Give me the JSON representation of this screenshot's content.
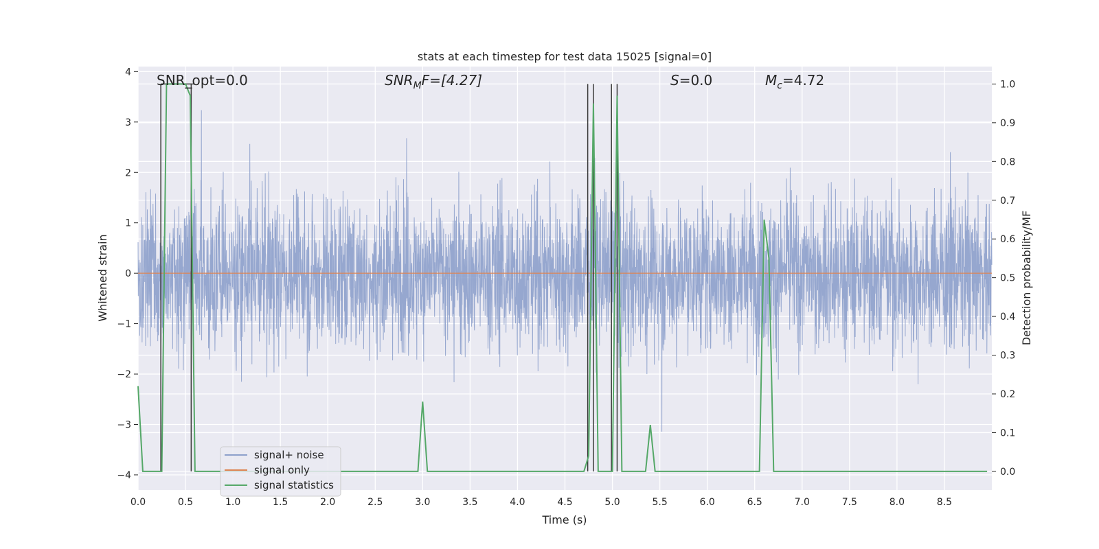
{
  "chart_data": {
    "type": "line",
    "title": "stats at each timestep for test data 15025 [signal=0]",
    "xlabel": "Time (s)",
    "ylabel": "Whitened strain",
    "y2label": "Detection probability/MF",
    "xlim": [
      0,
      9.0
    ],
    "ylim": [
      -4.3,
      4.1
    ],
    "y2lim": [
      -0.048,
      1.045
    ],
    "xticks": [
      0.0,
      0.5,
      1.0,
      1.5,
      2.0,
      2.5,
      3.0,
      3.5,
      4.0,
      4.5,
      5.0,
      5.5,
      6.0,
      6.5,
      7.0,
      7.5,
      8.0,
      8.5
    ],
    "xtick_labels": [
      "0.0",
      "0.5",
      "1.0",
      "1.5",
      "2.0",
      "2.5",
      "3.0",
      "3.5",
      "4.0",
      "4.5",
      "5.0",
      "5.5",
      "6.0",
      "6.5",
      "7.0",
      "7.5",
      "8.0",
      "8.5"
    ],
    "yticks": [
      -4,
      -3,
      -2,
      -1,
      0,
      1,
      2,
      3,
      4
    ],
    "ytick_labels": [
      "−4",
      "−3",
      "−2",
      "−1",
      "0",
      "1",
      "2",
      "3",
      "4"
    ],
    "y2ticks": [
      0.0,
      0.1,
      0.2,
      0.3,
      0.4,
      0.5,
      0.6,
      0.7,
      0.8,
      0.9,
      1.0
    ],
    "y2tick_labels": [
      "0.0",
      "0.1",
      "0.2",
      "0.3",
      "0.4",
      "0.5",
      "0.6",
      "0.7",
      "0.8",
      "0.9",
      "1.0"
    ],
    "grid": true,
    "legend_placement": "lower-left",
    "series": [
      {
        "name": "signal+ noise",
        "color": "#8da0cb",
        "axis": "left",
        "kind": "noise",
        "envelope_upper": 2.0,
        "envelope_lower": -2.0,
        "peak_max": 3.7,
        "trough_min": -4.0
      },
      {
        "name": "signal only",
        "color": "#dd8452",
        "axis": "left",
        "values_x": [
          0,
          9.0
        ],
        "values_y": [
          0,
          0
        ]
      },
      {
        "name": "signal statistics",
        "color": "#55a868",
        "axis": "right",
        "x": [
          0.0,
          0.05,
          0.1,
          0.15,
          0.2,
          0.25,
          0.3,
          0.35,
          0.4,
          0.45,
          0.5,
          0.55,
          0.6,
          0.65,
          0.7,
          0.8,
          0.9,
          1.0,
          1.5,
          2.0,
          2.5,
          2.9,
          2.95,
          3.0,
          3.05,
          3.1,
          3.5,
          4.0,
          4.5,
          4.65,
          4.7,
          4.75,
          4.8,
          4.85,
          4.9,
          4.95,
          5.0,
          5.05,
          5.1,
          5.15,
          5.2,
          5.25,
          5.3,
          5.35,
          5.4,
          5.45,
          5.5,
          5.6,
          5.7,
          5.8,
          5.9,
          5.95,
          6.0,
          6.1,
          6.2,
          6.3,
          6.4,
          6.5,
          6.55,
          6.6,
          6.65,
          6.7,
          6.75,
          6.8,
          7.0,
          7.5,
          8.0,
          8.5,
          8.6,
          8.7,
          8.8,
          8.95
        ],
        "values": [
          0.22,
          0.0,
          0.0,
          0.0,
          0.0,
          0.0,
          1.0,
          1.0,
          1.0,
          1.0,
          1.0,
          0.97,
          0.0,
          0.0,
          0.0,
          0.0,
          0.0,
          0.0,
          0.0,
          0.0,
          0.0,
          0.0,
          0.0,
          0.18,
          0.0,
          0.0,
          0.0,
          0.0,
          0.0,
          0.0,
          0.0,
          0.04,
          0.95,
          0.0,
          0.0,
          0.0,
          0.0,
          0.97,
          0.0,
          0.0,
          0.0,
          0.0,
          0.0,
          0.0,
          0.12,
          0.0,
          0.0,
          0.0,
          0.0,
          0.0,
          0.0,
          0.0,
          0.0,
          0.0,
          0.0,
          0.0,
          0.0,
          0.0,
          0.0,
          0.65,
          0.55,
          0.0,
          0.0,
          0.0,
          0.0,
          0.0,
          0.0,
          0.0,
          0.0,
          0.0,
          0.0,
          0.0
        ]
      }
    ],
    "vertical_markers": [
      {
        "x": 0.24,
        "y_top": 1.0,
        "y_bottom": 0.0
      },
      {
        "x": 0.56,
        "y_top": 1.0,
        "y_bottom": 0.0
      },
      {
        "x": 4.74,
        "y_top": 1.0,
        "y_bottom": 0.0
      },
      {
        "x": 4.8,
        "y_top": 1.0,
        "y_bottom": 0.0
      },
      {
        "x": 4.99,
        "y_top": 1.0,
        "y_bottom": 0.0
      },
      {
        "x": 5.05,
        "y_top": 1.0,
        "y_bottom": 0.0
      }
    ],
    "annotations": [
      {
        "id": "snr-opt",
        "x": 0.2,
        "text": "SNR_opt=0.0"
      },
      {
        "id": "snr-mf",
        "x": 2.6,
        "text": "SNR_MF=[4.27]"
      },
      {
        "id": "s",
        "x": 5.6,
        "text": "S=0.0"
      },
      {
        "id": "mc",
        "x": 6.6,
        "text": "M_c=4.72"
      }
    ]
  },
  "text": {
    "title": "stats at each timestep for test data 15025 [signal=0]",
    "xlabel": "Time (s)",
    "ylabel": "Whitened strain",
    "y2label": "Detection probability/MF",
    "annot_snr_opt": "SNR_opt=0.0",
    "annot_snr_mf_main": "SNR",
    "annot_snr_mf_sub": "M",
    "annot_snr_mf_rest": "F=[4.27]",
    "annot_s_main": "S",
    "annot_s_rest": "=0.0",
    "annot_mc_main": "M",
    "annot_mc_sub": "c",
    "annot_mc_rest": "=4.72",
    "legend_1": "signal+ noise",
    "legend_2": "signal only",
    "legend_3": "signal statistics"
  }
}
